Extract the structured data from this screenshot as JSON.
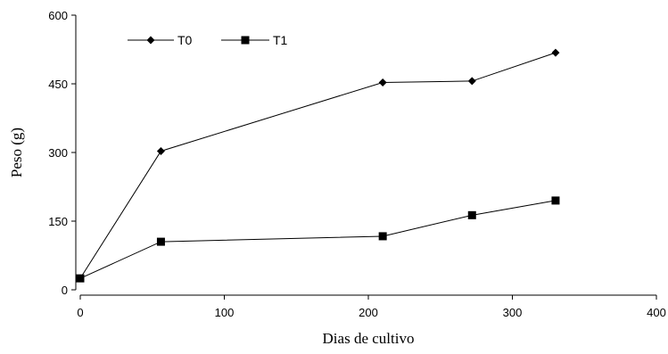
{
  "chart_data": {
    "type": "line",
    "xlabel": "Dias de cultivo",
    "ylabel": "Peso (g)",
    "xlim": [
      0,
      400
    ],
    "ylim": [
      0,
      600
    ],
    "xticks": [
      0,
      100,
      200,
      300,
      400
    ],
    "yticks": [
      0,
      150,
      300,
      450,
      600
    ],
    "grid": false,
    "legend_position": "top-left",
    "series": [
      {
        "name": "T0",
        "marker": "diamond",
        "color": "#000000",
        "x": [
          0,
          56,
          210,
          272,
          330
        ],
        "y": [
          25,
          303,
          453,
          456,
          518
        ]
      },
      {
        "name": "T1",
        "marker": "square",
        "color": "#000000",
        "x": [
          0,
          56,
          210,
          272,
          330
        ],
        "y": [
          25,
          105,
          117,
          163,
          195
        ]
      }
    ]
  }
}
